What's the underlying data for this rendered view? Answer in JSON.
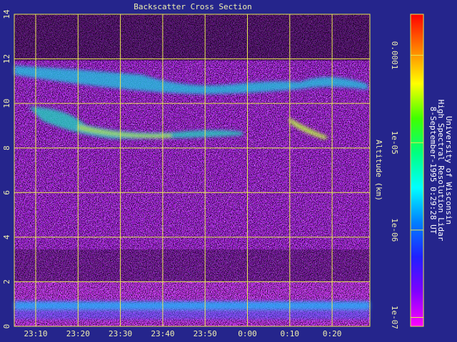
{
  "chart_data": {
    "type": "heatmap",
    "title": "Backscatter Cross Section",
    "y_label": "Altitude (km)",
    "ylim": [
      0,
      14
    ],
    "yticks": [
      0,
      2,
      4,
      6,
      8,
      10,
      12,
      14
    ],
    "xticks": [
      "23:10",
      "23:20",
      "23:30",
      "23:40",
      "23:50",
      "0:00",
      "0:10",
      "0:20"
    ],
    "grid": true,
    "colorbar": {
      "scale": "log",
      "lim": [
        7.9e-08,
        0.000295
      ],
      "ticks": [
        {
          "value": 0.0001,
          "label": "0.0001"
        },
        {
          "value": 1e-05,
          "label": "1e-05"
        },
        {
          "value": 1e-06,
          "label": "1e-06"
        },
        {
          "value": 1e-07,
          "label": "1e-07"
        }
      ],
      "colors": [
        "#ff00ff",
        "#8000ff",
        "#2020ff",
        "#0080ff",
        "#00ffff",
        "#00ff80",
        "#40ff00",
        "#ffff00",
        "#ff8000",
        "#ff0000"
      ]
    },
    "annotations": [
      "University of Wisconsin",
      "High Spectral Resolution Lidar",
      "8-September-1995  0:29:28 UT"
    ]
  }
}
